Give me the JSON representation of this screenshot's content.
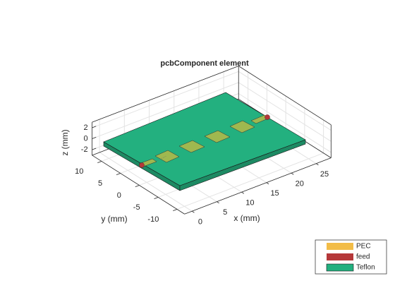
{
  "chart_data": {
    "type": "pcb3d",
    "title": "pcbComponent element",
    "xlabel": "x (mm)",
    "ylabel": "y (mm)",
    "zlabel": "z (mm)",
    "xlim": [
      -1.5,
      28
    ],
    "ylim": [
      -12,
      12.5
    ],
    "zlim": [
      -3,
      3
    ],
    "xticks": [
      0,
      5,
      10,
      15,
      20,
      25
    ],
    "yticks": [
      -10,
      -5,
      0,
      5,
      10
    ],
    "zticks": [
      -2,
      0,
      2
    ],
    "grid": true,
    "legend": {
      "position": "southeast",
      "items": [
        {
          "name": "PEC",
          "color": "#f2bc47"
        },
        {
          "name": "feed",
          "color": "#b5383a"
        },
        {
          "name": "Teflon",
          "color": "#23b07f"
        }
      ]
    }
  }
}
